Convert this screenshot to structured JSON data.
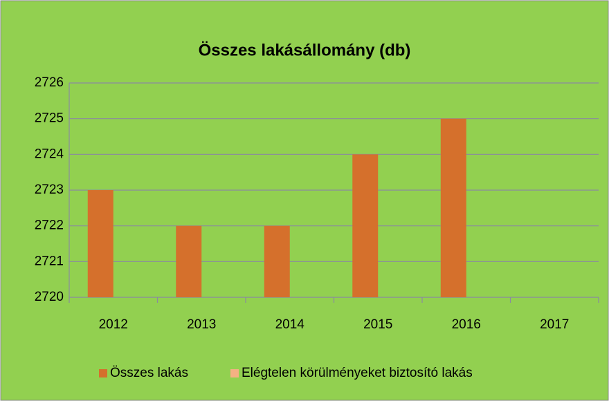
{
  "chart_data": {
    "type": "bar",
    "title": "Összes lakásállomány (db)",
    "categories": [
      "2012",
      "2013",
      "2014",
      "2015",
      "2016",
      "2017"
    ],
    "series": [
      {
        "name": "Összes lakás",
        "color": "#d5702c",
        "values": [
          2723,
          2722,
          2722,
          2724,
          2725,
          null
        ]
      },
      {
        "name": "Elégtelen körülményeket biztosító lakás",
        "color": "#f4b183",
        "values": [
          null,
          null,
          null,
          null,
          null,
          null
        ]
      }
    ],
    "ylim": [
      2720,
      2726
    ],
    "yticks": [
      2720,
      2721,
      2722,
      2723,
      2724,
      2725,
      2726
    ],
    "grid": true,
    "legend": "bottom"
  }
}
